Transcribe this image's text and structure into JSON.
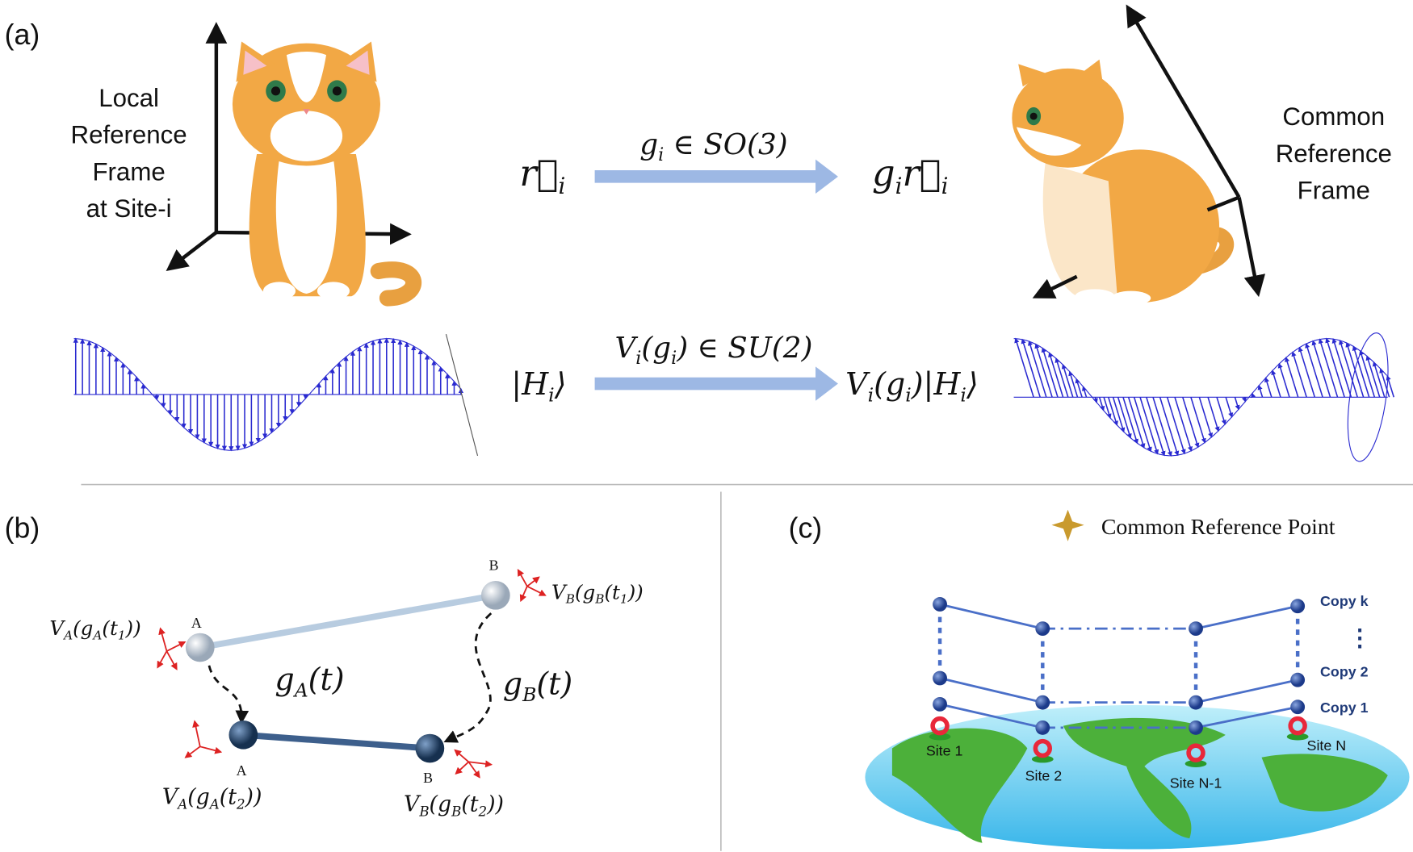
{
  "panel_a": {
    "label": "(a)",
    "local_frame": [
      "Local",
      "Reference",
      "Frame",
      "at Site-i"
    ],
    "common_frame": [
      "Common",
      "Reference",
      "Frame"
    ],
    "vector": [
      "r⃗",
      "i"
    ],
    "rotation": [
      "g",
      "i",
      " ∈ SO(3)"
    ],
    "rotated_vector": [
      "g",
      "i",
      "r⃗",
      "i"
    ],
    "state": [
      "|H",
      "i",
      "⟩"
    ],
    "unitary": [
      "V",
      "i",
      "(g",
      "i",
      ") ∈ SU(2)"
    ],
    "rotated_state": [
      "V",
      "i",
      "(g",
      "i",
      ")|H",
      "i",
      "⟩"
    ]
  },
  "panel_b": {
    "label": "(b)",
    "node_labels": [
      "A",
      "B",
      "A",
      "B"
    ],
    "path_a": [
      "g",
      "A",
      "(t)"
    ],
    "path_b": [
      "g",
      "B",
      "(t)"
    ],
    "va_t1": [
      "V",
      "A",
      "(g",
      "A",
      "(t",
      "1",
      "))"
    ],
    "vb_t1": [
      "V",
      "B",
      "(g",
      "B",
      "(t",
      "1",
      "))"
    ],
    "va_t2": [
      "V",
      "A",
      "(g",
      "A",
      "(t",
      "2",
      "))"
    ],
    "vb_t2": [
      "V",
      "B",
      "(g",
      "B",
      "(t",
      "2",
      "))"
    ]
  },
  "panel_c": {
    "label": "(c)",
    "legend": "Common Reference Point",
    "copies": [
      "Copy k",
      "⋮",
      "Copy 2",
      "Copy 1"
    ],
    "sites": [
      "Site 1",
      "Site 2",
      "Site N-1",
      "Site N"
    ]
  }
}
